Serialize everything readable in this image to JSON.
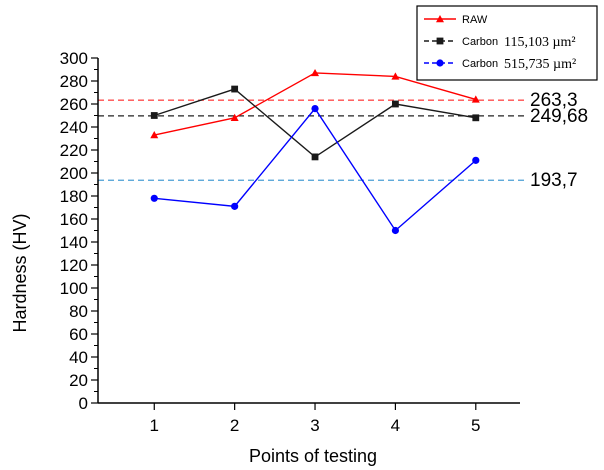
{
  "chart_data": {
    "type": "line",
    "xlabel": "Points of testing",
    "ylabel": "Hardness (HV)",
    "x": [
      1,
      2,
      3,
      4,
      5
    ],
    "xlim": [
      0.3,
      5.55
    ],
    "ylim": [
      0,
      300
    ],
    "y_ticks": [
      0,
      20,
      40,
      60,
      80,
      100,
      120,
      140,
      160,
      180,
      200,
      220,
      240,
      260,
      280,
      300
    ],
    "x_ticks": [
      1,
      2,
      3,
      4,
      5
    ],
    "grid": false,
    "legend_position": "top-right",
    "series": [
      {
        "name": "RAW",
        "legend_label": "RAW",
        "legend_area": "",
        "color": "#ff0000",
        "marker": "triangle",
        "values": [
          233,
          248,
          287,
          284,
          264
        ]
      },
      {
        "name": "Carbon 115,103 µm²",
        "legend_label": "Carbon",
        "legend_area": "115,103 µm²",
        "color": "#1a1a1a",
        "marker": "square",
        "values": [
          250,
          273,
          214,
          260,
          248
        ]
      },
      {
        "name": "Carbon 515,735 µm²",
        "legend_label": "Carbon",
        "legend_area": "515,735 µm²",
        "color": "#0000ff",
        "marker": "circle",
        "values": [
          178,
          171,
          256,
          150,
          211
        ]
      }
    ],
    "reference_lines": [
      {
        "value": 263.3,
        "label": "263,3",
        "color": "#ff4d4d"
      },
      {
        "value": 249.68,
        "label": "249,68",
        "color": "#222222"
      },
      {
        "value": 193.7,
        "label": "193,7",
        "color": "#4a9fd5"
      }
    ]
  }
}
